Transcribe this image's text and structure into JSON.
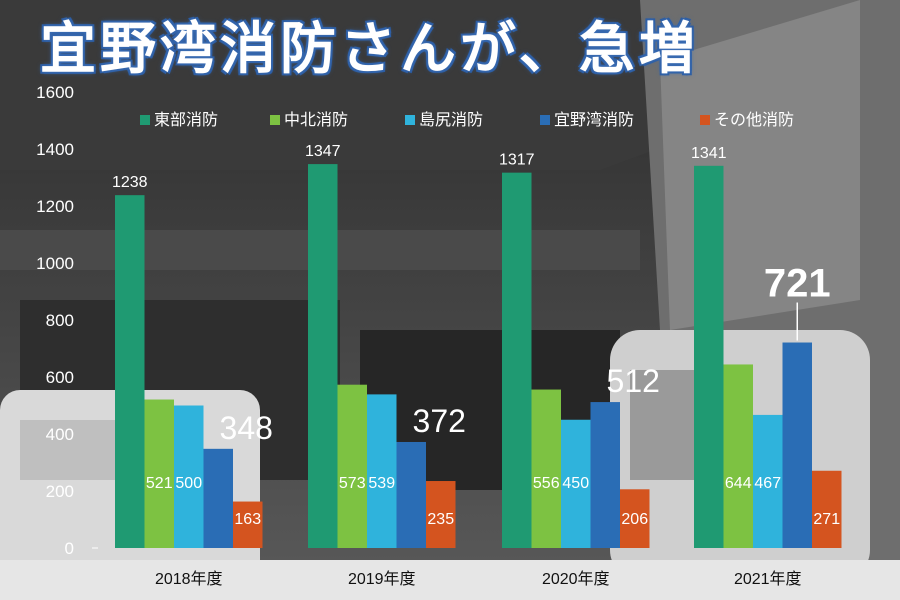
{
  "page": {
    "title": "宜野湾消防さんが、急増"
  },
  "colors": {
    "series": [
      "#1f9a72",
      "#7dc242",
      "#2fb3dc",
      "#2a6db5",
      "#d4541f"
    ]
  },
  "chart_data": {
    "type": "bar",
    "title": "宜野湾消防さんが、急増",
    "categories": [
      "2018年度",
      "2019年度",
      "2020年度",
      "2021年度"
    ],
    "ylim": [
      0,
      1600
    ],
    "yticks": [
      0,
      200,
      400,
      600,
      800,
      1000,
      1200,
      1400,
      1600
    ],
    "grid": false,
    "legend_position": "top",
    "series": [
      {
        "name": "東部消防",
        "values": [
          1238,
          1347,
          1317,
          1341
        ]
      },
      {
        "name": "中北消防",
        "values": [
          521,
          573,
          556,
          644
        ]
      },
      {
        "name": "島尻消防",
        "values": [
          500,
          539,
          450,
          467
        ]
      },
      {
        "name": "宜野湾消防",
        "values": [
          348,
          372,
          512,
          721
        ]
      },
      {
        "name": "その他消防",
        "values": [
          163,
          235,
          206,
          271
        ]
      }
    ]
  }
}
